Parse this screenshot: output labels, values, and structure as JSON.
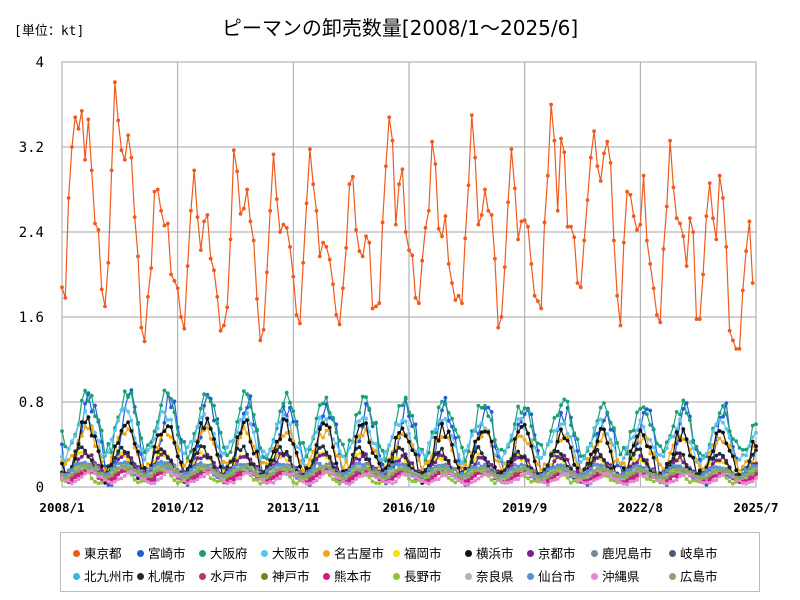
{
  "unit_label": "[単位：kt]",
  "chart_data": {
    "type": "line",
    "title": "ピーマンの卸売数量[2008/1～2025/6]",
    "xlabel": "",
    "ylabel": "",
    "ylim": [
      0,
      4
    ],
    "yticks": [
      "0",
      "0.8",
      "1.6",
      "2.4",
      "3.2",
      "4"
    ],
    "xticks": [
      "2008/1",
      "2010/12",
      "2013/11",
      "2016/10",
      "2019/9",
      "2022/8",
      "2025/7"
    ],
    "grid": true,
    "legend_position": "bottom",
    "series": [
      {
        "name": "東京都",
        "color": "#f05a1e",
        "values": [
          1.88,
          1.78,
          2.72,
          3.2,
          3.48,
          3.37,
          3.54,
          3.08,
          3.46,
          2.98,
          2.48,
          2.42,
          1.86,
          1.7,
          2.11,
          2.98,
          3.81,
          3.45,
          3.17,
          3.08,
          3.31,
          3.1,
          2.54,
          2.17,
          1.5,
          1.37,
          1.79,
          2.06,
          2.78,
          2.8,
          2.6,
          2.46,
          2.48,
          2.0,
          1.94,
          1.87,
          1.6,
          1.49,
          2.08,
          2.6,
          2.98,
          2.54,
          2.23,
          2.5,
          2.56,
          2.15,
          2.04,
          1.79,
          1.47,
          1.52,
          1.69,
          2.33,
          3.17,
          2.97,
          2.57,
          2.62,
          2.8,
          2.5,
          2.32,
          1.77,
          1.38,
          1.48,
          2.02,
          2.6,
          3.13,
          2.71,
          2.4,
          2.47,
          2.44,
          2.26,
          1.98,
          1.62,
          1.54,
          2.11,
          2.67,
          3.18,
          2.85,
          2.6,
          2.17,
          2.3,
          2.26,
          2.14,
          1.91,
          1.62,
          1.53,
          1.87,
          2.25,
          2.85,
          2.92,
          2.42,
          2.22,
          2.17,
          2.36,
          2.3,
          1.68,
          1.7,
          1.73,
          2.49,
          3.02,
          3.48,
          3.26,
          2.47,
          2.85,
          2.99,
          2.4,
          2.23,
          2.18,
          1.78,
          1.73,
          2.13,
          2.44,
          2.6,
          3.25,
          3.04,
          2.43,
          2.36,
          2.55,
          2.1,
          1.92,
          1.76,
          1.8,
          1.73,
          2.34,
          2.84,
          3.5,
          3.1,
          2.47,
          2.56,
          2.8,
          2.6,
          2.56,
          2.15,
          1.5,
          1.6,
          2.07,
          2.68,
          3.18,
          2.81,
          2.33,
          2.5,
          2.51,
          2.45,
          2.1,
          1.8,
          1.75,
          1.68,
          2.49,
          2.93,
          3.6,
          3.26,
          2.6,
          3.28,
          3.15,
          2.45,
          2.45,
          2.35,
          1.92,
          1.88,
          2.32,
          2.7,
          3.1,
          3.35,
          3.02,
          2.88,
          3.14,
          3.25,
          3.05,
          2.32,
          1.8,
          1.52,
          2.3,
          2.78,
          2.75,
          2.55,
          2.42,
          2.47,
          2.93,
          2.32,
          2.1,
          1.87,
          1.62,
          1.55,
          2.24,
          2.64,
          3.26,
          2.82,
          2.53,
          2.48,
          2.36,
          2.08,
          2.53,
          2.4,
          1.58,
          1.58,
          2.0,
          2.55,
          2.86,
          2.53,
          2.33,
          2.93,
          2.72,
          2.26,
          1.47,
          1.38,
          1.3,
          1.3,
          1.85,
          2.22,
          2.5,
          1.92
        ]
      },
      {
        "name": "宮崎市",
        "color": "#1f5fd6",
        "base": 0.45,
        "amp": 0.38,
        "phase": 3.4
      },
      {
        "name": "大阪府",
        "color": "#19a07a",
        "base": 0.62,
        "amp": 0.27,
        "phase": 3.8
      },
      {
        "name": "大阪市",
        "color": "#5bc2ee",
        "base": 0.5,
        "amp": 0.2,
        "phase": 4.2
      },
      {
        "name": "名古屋市",
        "color": "#f2a81c",
        "base": 0.38,
        "amp": 0.18,
        "phase": 3.9
      },
      {
        "name": "福岡市",
        "color": "#f2e40c",
        "base": 0.22,
        "amp": 0.1,
        "phase": 4.5
      },
      {
        "name": "横浜市",
        "color": "#111111",
        "base": 0.36,
        "amp": 0.25,
        "phase": 4.0
      },
      {
        "name": "京都市",
        "color": "#7a1f8f",
        "base": 0.22,
        "amp": 0.1,
        "phase": 4.1
      },
      {
        "name": "鹿児島市",
        "color": "#7a8a95",
        "base": 0.16,
        "amp": 0.06,
        "phase": 3.5
      },
      {
        "name": "岐阜市",
        "color": "#4a5a78",
        "base": 0.13,
        "amp": 0.05,
        "phase": 3.7
      },
      {
        "name": "北九州市",
        "color": "#3bb4e8",
        "base": 0.14,
        "amp": 0.06,
        "phase": 4.3
      },
      {
        "name": "札幌市",
        "color": "#1c2a33",
        "base": 0.24,
        "amp": 0.14,
        "phase": 4.6
      },
      {
        "name": "水戸市",
        "color": "#b53a6a",
        "base": 0.12,
        "amp": 0.05,
        "phase": 4.0
      },
      {
        "name": "神戸市",
        "color": "#6b8a1a",
        "base": 0.14,
        "amp": 0.05,
        "phase": 4.2
      },
      {
        "name": "熊本市",
        "color": "#d6158a",
        "base": 0.11,
        "amp": 0.05,
        "phase": 3.6
      },
      {
        "name": "長野市",
        "color": "#8fc33a",
        "base": 0.12,
        "amp": 0.07,
        "phase": 5.0
      },
      {
        "name": "奈良県",
        "color": "#a8b4c4",
        "base": 0.15,
        "amp": 0.05,
        "phase": 4.1
      },
      {
        "name": "仙台市",
        "color": "#5a8ed6",
        "base": 0.17,
        "amp": 0.06,
        "phase": 4.8
      },
      {
        "name": "沖縄県",
        "color": "#e28ad0",
        "base": 0.09,
        "amp": 0.05,
        "phase": 3.2
      },
      {
        "name": "広島市",
        "color": "#8aa66a",
        "base": 0.15,
        "amp": 0.05,
        "phase": 4.0
      }
    ]
  }
}
